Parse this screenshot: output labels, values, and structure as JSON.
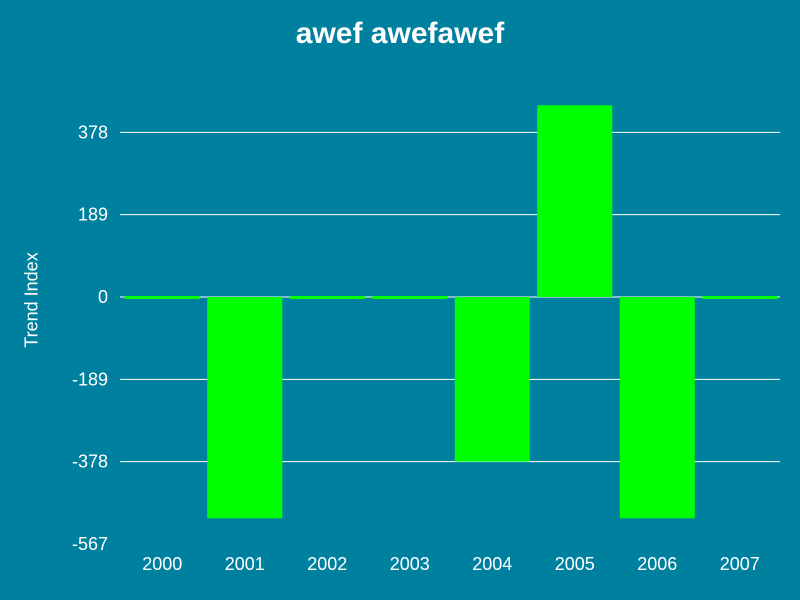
{
  "colors": {
    "background": "#00809f",
    "bar": "#00ff00",
    "grid": "#ffffff",
    "text": "#ffffff"
  },
  "chart_data": {
    "type": "bar",
    "title": "awef awefawef",
    "xlabel": "",
    "ylabel": "Trend Index",
    "categories": [
      "2000",
      "2001",
      "2002",
      "2003",
      "2004",
      "2005",
      "2006",
      "2007"
    ],
    "values": [
      0,
      -508,
      0,
      0,
      -378,
      440,
      -508,
      0
    ],
    "yticks": [
      -567,
      -378,
      -189,
      0,
      189,
      378
    ],
    "ytick_labels": [
      "-567",
      "-378",
      "-189",
      "0",
      "189",
      "378"
    ],
    "ylim": [
      -567,
      500
    ],
    "grid": true,
    "legend": "none"
  }
}
